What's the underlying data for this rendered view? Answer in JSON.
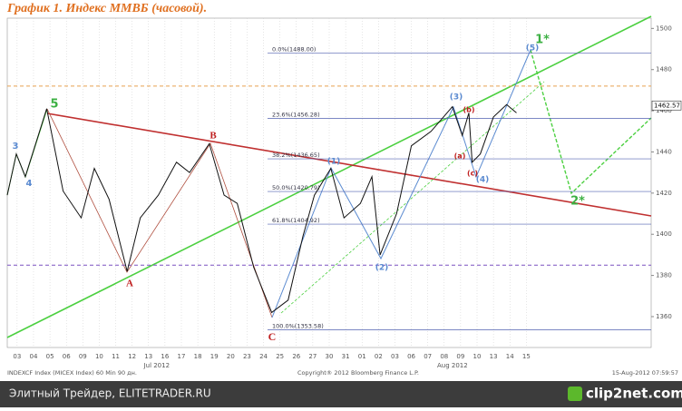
{
  "chart_data": {
    "type": "line",
    "title": "График 1.   Индекс ММВБ (часовой).",
    "x": [
      -0.6,
      -0.05,
      0.5,
      1.8,
      2.8,
      3.9,
      4.7,
      5.6,
      6.7,
      7.5,
      8.6,
      9.7,
      10.5,
      11.7,
      12.6,
      13.4,
      14.4,
      15.5,
      16.5,
      17.4,
      18.1,
      19.1,
      19.9,
      20.9,
      21.6,
      22.1,
      23.1,
      24.0,
      25.2,
      26.5,
      27.1,
      27.5,
      27.7,
      28.2,
      29.0,
      29.8,
      30.4
    ],
    "series": [
      {
        "color": "#111111",
        "values": [
          1419,
          1439,
          1428,
          1461,
          1421,
          1408,
          1432,
          1417,
          1382,
          1408,
          1419,
          1435,
          1430,
          1444,
          1419,
          1415,
          1384,
          1362,
          1368,
          1399,
          1419,
          1432,
          1408,
          1415,
          1428,
          1390,
          1410,
          1443,
          1450,
          1462,
          1448,
          1459,
          1435,
          1439,
          1457,
          1463,
          1459
        ]
      }
    ],
    "xlim": [
      -0.6,
      38.6
    ],
    "xticks": [
      {
        "value": 0,
        "label": "03"
      },
      {
        "value": 1,
        "label": "04"
      },
      {
        "value": 2,
        "label": "05"
      },
      {
        "value": 3,
        "label": "06"
      },
      {
        "value": 4,
        "label": "09"
      },
      {
        "value": 5,
        "label": "10"
      },
      {
        "value": 6,
        "label": "11"
      },
      {
        "value": 7,
        "label": "12"
      },
      {
        "value": 8,
        "label": "13"
      },
      {
        "value": 9,
        "label": "16"
      },
      {
        "value": 10,
        "label": "17"
      },
      {
        "value": 11,
        "label": "18"
      },
      {
        "value": 12,
        "label": "19"
      },
      {
        "value": 13,
        "label": "20"
      },
      {
        "value": 14,
        "label": "23"
      },
      {
        "value": 15,
        "label": "24"
      },
      {
        "value": 16,
        "label": "25"
      },
      {
        "value": 17,
        "label": "26"
      },
      {
        "value": 18,
        "label": "27"
      },
      {
        "value": 19,
        "label": "30"
      },
      {
        "value": 20,
        "label": "31"
      },
      {
        "value": 21,
        "label": "01"
      },
      {
        "value": 22,
        "label": "02"
      },
      {
        "value": 23,
        "label": "03"
      },
      {
        "value": 24,
        "label": "06"
      },
      {
        "value": 25,
        "label": "07"
      },
      {
        "value": 26,
        "label": "08"
      },
      {
        "value": 27,
        "label": "09"
      },
      {
        "value": 28,
        "label": "10"
      },
      {
        "value": 29,
        "label": "13"
      },
      {
        "value": 30,
        "label": "14"
      },
      {
        "value": 31,
        "label": "15"
      }
    ],
    "month_labels": [
      "Jul 2012",
      "Aug 2012"
    ],
    "ylim": [
      1345,
      1505
    ],
    "yticks": [
      1360,
      1380,
      1400,
      1420,
      1440,
      1460,
      1480,
      1500
    ],
    "grid": true,
    "last_price": 1462.57,
    "fib_levels": [
      {
        "value": 1488,
        "label": "0.0%(1488.00)"
      },
      {
        "value": 1456.28,
        "label": "23.6%(1456.28)"
      },
      {
        "value": 1436.65,
        "label": "38.2%(1436.65)"
      },
      {
        "value": 1420.79,
        "label": "50.0%(1420.79)"
      },
      {
        "value": 1404.92,
        "label": "61.8%(1404.92)"
      },
      {
        "value": 1353.58,
        "label": "100.0%(1353.58)"
      }
    ],
    "reference_lines": [
      {
        "value": 1472,
        "color": "#e8a050"
      },
      {
        "value": 1385,
        "color": "#7a50c0"
      }
    ],
    "annotations": [
      {
        "text": "1*",
        "color": "#3cb043"
      },
      {
        "text": "2*",
        "color": "#3cb043"
      },
      {
        "text": "5",
        "color": "#3cb043"
      },
      {
        "text": "3",
        "color": "#5a8ad0"
      },
      {
        "text": "4",
        "color": "#5a8ad0"
      },
      {
        "text": "A",
        "color": "#c02020"
      },
      {
        "text": "B",
        "color": "#c02020"
      },
      {
        "text": "C",
        "color": "#c02020"
      },
      {
        "text": "(1)",
        "color": "#5a8ad0"
      },
      {
        "text": "(2)",
        "color": "#5a8ad0"
      },
      {
        "text": "(3)",
        "color": "#5a8ad0"
      },
      {
        "text": "(4)",
        "color": "#5a8ad0"
      },
      {
        "text": "(5)",
        "color": "#5a8ad0"
      },
      {
        "text": "(a)",
        "color": "#c02020"
      },
      {
        "text": "(b)",
        "color": "#c02020"
      },
      {
        "text": "(c)",
        "color": "#c02020"
      }
    ],
    "footer_left": "INDEXCF Index (MICEX Index) 60 Min 90 дн.",
    "footer_center": "Copyright® 2012 Bloomberg Finance L.P.",
    "footer_right": "15-Aug-2012 07:59:57"
  },
  "watermark": {
    "left": "Элитный Трейдер, ELITETRADER.RU",
    "right": "clip2net.com"
  }
}
